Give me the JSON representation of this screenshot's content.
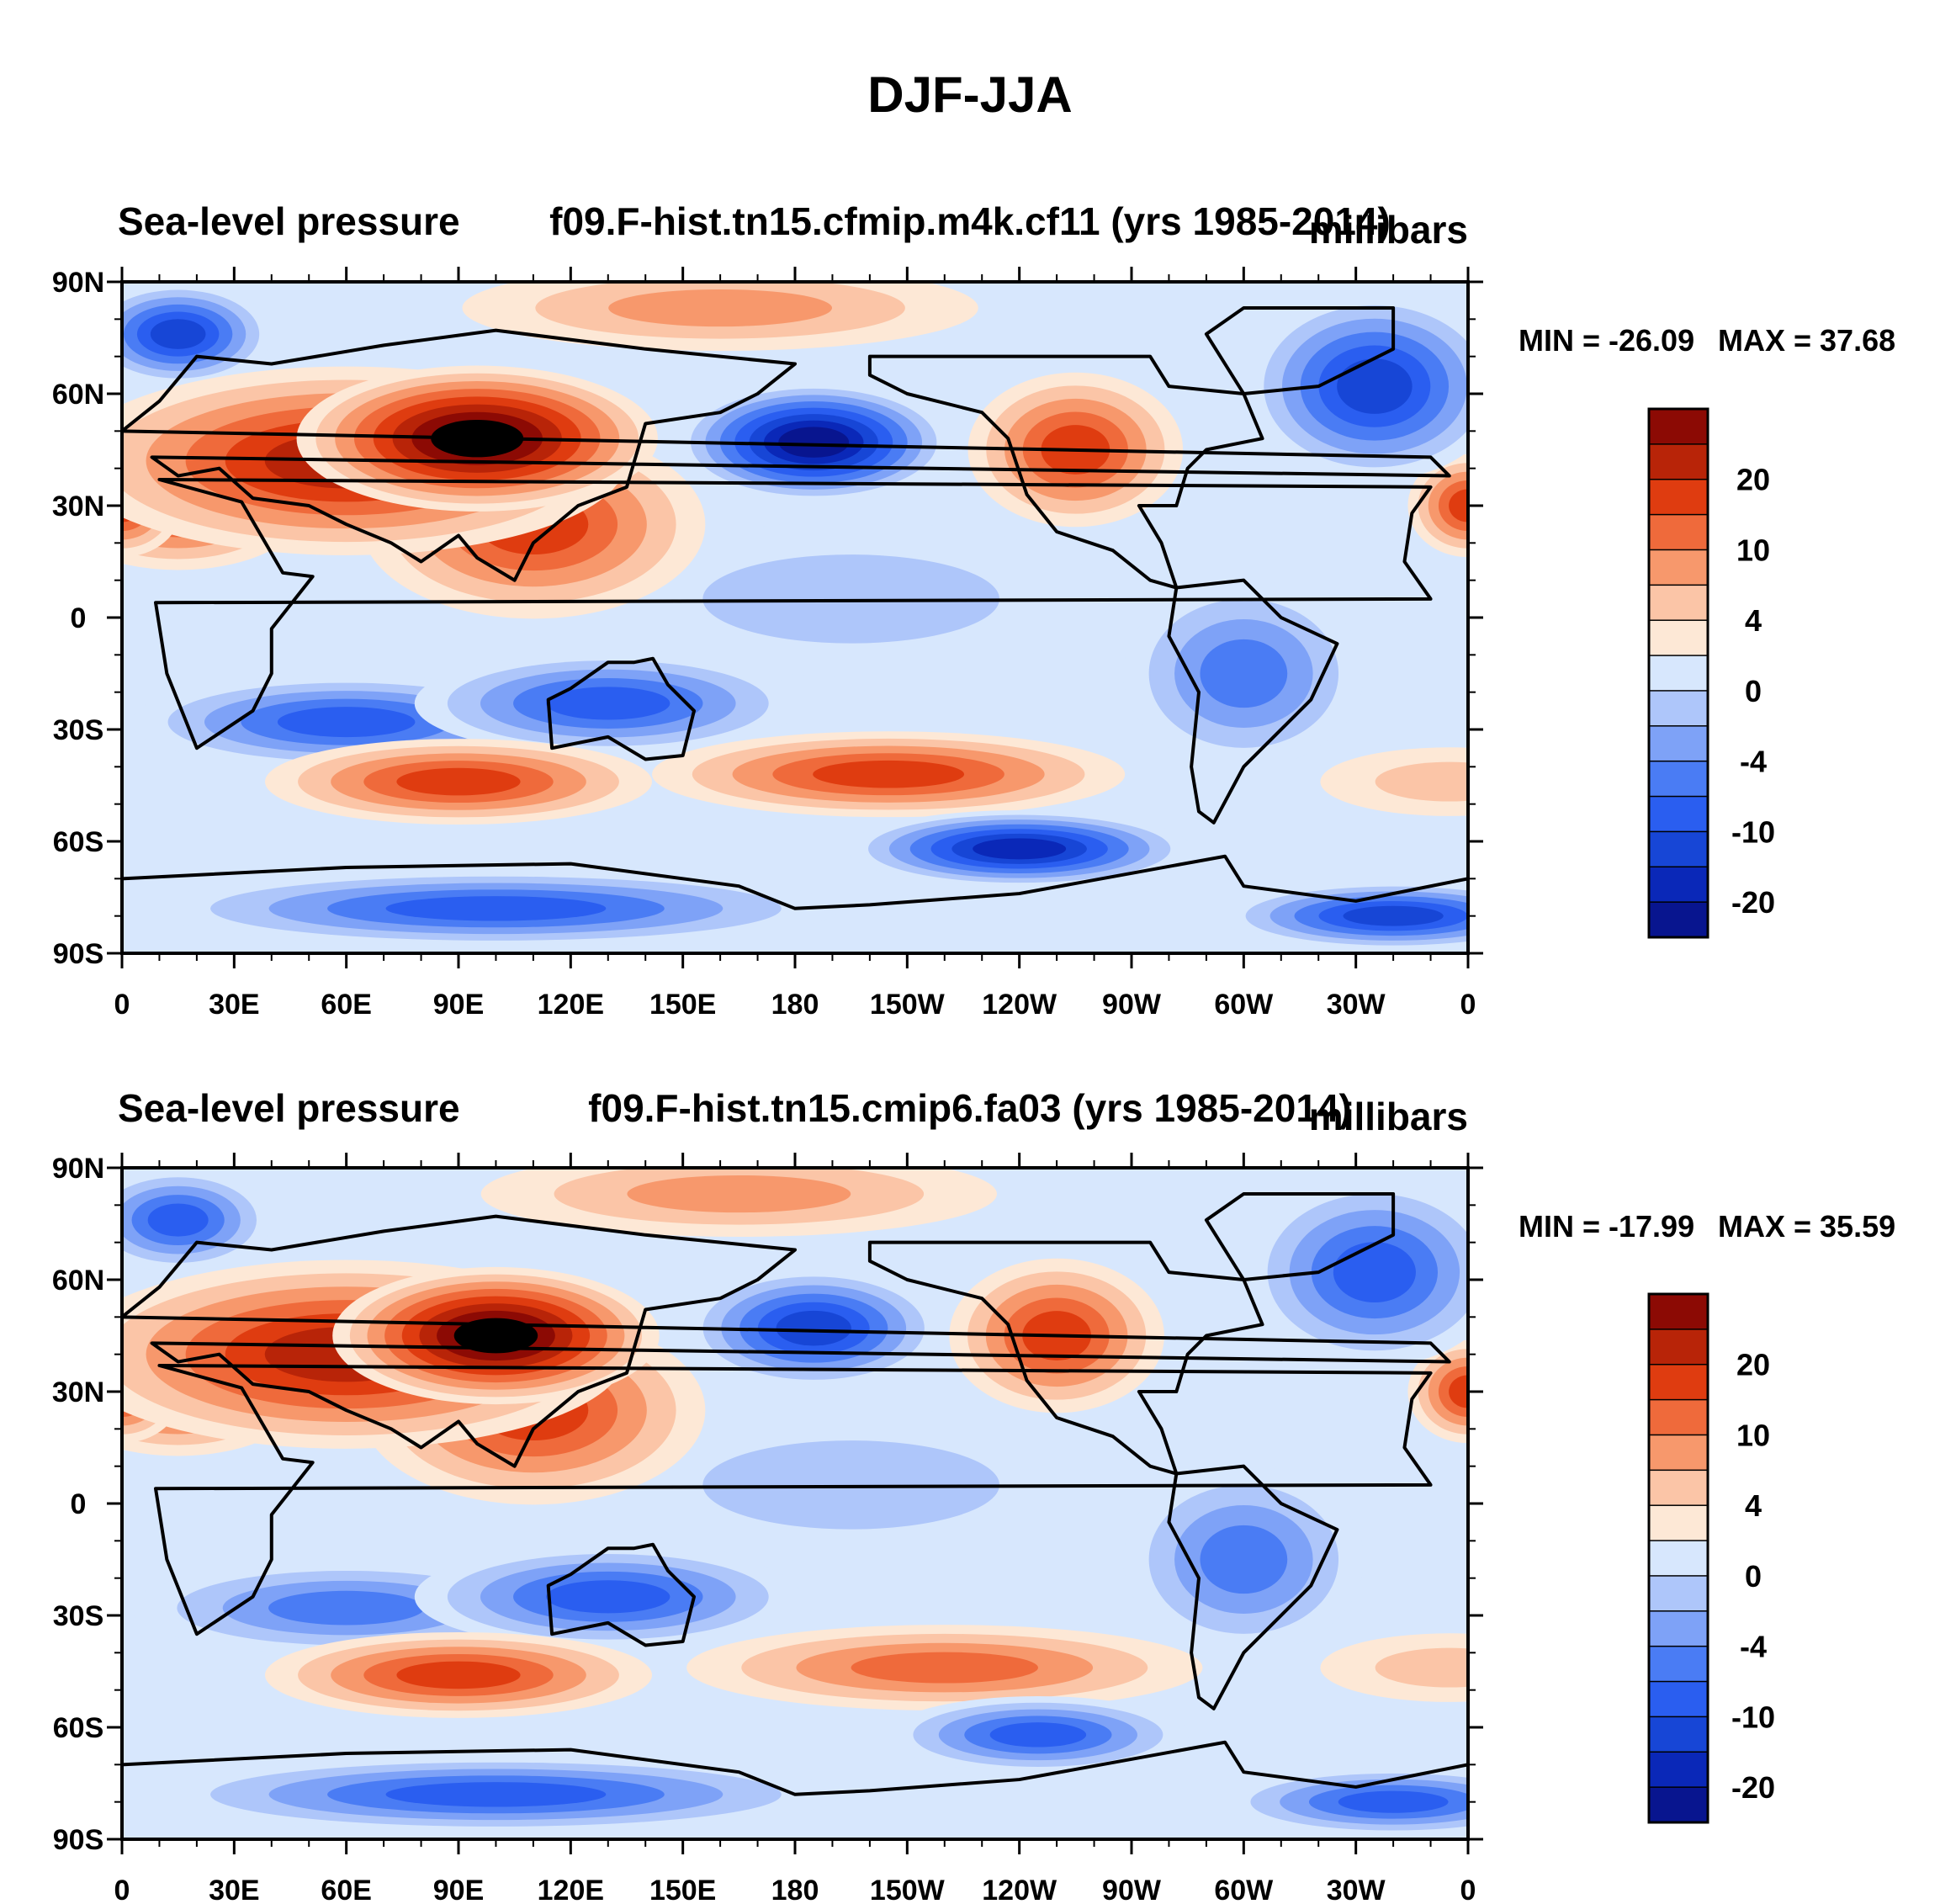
{
  "title": "DJF-JJA",
  "colors": {
    "levels_palette": [
      "#08158f",
      "#0a28b8",
      "#1746d6",
      "#2a5ef0",
      "#4a7cf4",
      "#7ea2f7",
      "#aec6fa",
      "#d7e7fd",
      "#fde8d6",
      "#fbc5a7",
      "#f7986c",
      "#ef6a3b",
      "#df3c10",
      "#b82408",
      "#8c0a04"
    ],
    "ocean_near_zero": "#d7e7fd",
    "coastline": "#000000"
  },
  "chart_data": [
    {
      "type": "heatmap",
      "variable_label": "Sea-level pressure",
      "case_label": "f09.F-hist.tn15.cfmip.m4k.cf11 (yrs 1985-2014)",
      "units": "millibars",
      "min_label": "MIN = -26.09",
      "max_label": "MAX =  37.68",
      "min": -26.09,
      "max": 37.68,
      "x_ticks": [
        "0",
        "30E",
        "60E",
        "90E",
        "120E",
        "150E",
        "180",
        "150W",
        "120W",
        "90W",
        "60W",
        "30W",
        "0"
      ],
      "y_ticks": [
        "90N",
        "60N",
        "30N",
        "0",
        "30S",
        "60S",
        "90S"
      ],
      "lon_range": [
        0,
        360
      ],
      "lat_range": [
        -90,
        90
      ],
      "colorbar_labels": [
        "20",
        "10",
        "4",
        "0",
        "-4",
        "-10",
        "-20"
      ],
      "features": [
        {
          "lon": 95,
          "lat": 48,
          "rx": 42,
          "ry": 17,
          "v": 32
        },
        {
          "lon": 60,
          "lat": 42,
          "rx": 65,
          "ry": 22,
          "v": 19
        },
        {
          "lon": 15,
          "lat": 30,
          "rx": 30,
          "ry": 15,
          "v": 14
        },
        {
          "lon": 110,
          "lat": 25,
          "rx": 40,
          "ry": 22,
          "v": 12
        },
        {
          "lon": 360,
          "lat": 30,
          "rx": 14,
          "ry": 12,
          "v": 14
        },
        {
          "lon": 0,
          "lat": 30,
          "rx": 14,
          "ry": 12,
          "v": 14
        },
        {
          "lon": 255,
          "lat": 45,
          "rx": 25,
          "ry": 18,
          "v": 14
        },
        {
          "lon": 245,
          "lat": 38,
          "rx": 9,
          "ry": 6,
          "v": 8
        },
        {
          "lon": 160,
          "lat": 83,
          "rx": 60,
          "ry": 10,
          "v": 5
        },
        {
          "lon": 185,
          "lat": 47,
          "rx": 32,
          "ry": 14,
          "v": -24
        },
        {
          "lon": 335,
          "lat": 62,
          "rx": 30,
          "ry": 22,
          "v": -16
        },
        {
          "lon": 15,
          "lat": 76,
          "rx": 22,
          "ry": 12,
          "v": -18
        },
        {
          "lon": 60,
          "lat": -28,
          "rx": 50,
          "ry": 11,
          "v": -10
        },
        {
          "lon": 130,
          "lat": -23,
          "rx": 45,
          "ry": 12,
          "v": -11
        },
        {
          "lon": 300,
          "lat": -15,
          "rx": 28,
          "ry": 22,
          "v": -8
        },
        {
          "lon": 195,
          "lat": 5,
          "rx": 60,
          "ry": 18,
          "v": -2
        },
        {
          "lon": 90,
          "lat": -44,
          "rx": 45,
          "ry": 10,
          "v": 14
        },
        {
          "lon": 205,
          "lat": -42,
          "rx": 55,
          "ry": 10,
          "v": 12
        },
        {
          "lon": 355,
          "lat": -44,
          "rx": 30,
          "ry": 8,
          "v": 4
        },
        {
          "lon": 240,
          "lat": -62,
          "rx": 40,
          "ry": 9,
          "v": -21
        },
        {
          "lon": 100,
          "lat": -78,
          "rx": 80,
          "ry": 9,
          "v": -12
        },
        {
          "lon": 340,
          "lat": -80,
          "rx": 40,
          "ry": 8,
          "v": -15
        }
      ]
    },
    {
      "type": "heatmap",
      "variable_label": "Sea-level pressure",
      "case_label": "f09.F-hist.tn15.cmip6.fa03 (yrs 1985-2014)",
      "units": "millibars",
      "min_label": "MIN = -17.99",
      "max_label": "MAX =  35.59",
      "min": -17.99,
      "max": 35.59,
      "x_ticks": [
        "0",
        "30E",
        "60E",
        "90E",
        "120E",
        "150E",
        "180",
        "150W",
        "120W",
        "90W",
        "60W",
        "30W",
        "0"
      ],
      "y_ticks": [
        "90N",
        "60N",
        "30N",
        "0",
        "30S",
        "60S",
        "90S"
      ],
      "lon_range": [
        0,
        360
      ],
      "lat_range": [
        -90,
        90
      ],
      "colorbar_labels": [
        "20",
        "10",
        "4",
        "0",
        "-4",
        "-10",
        "-20"
      ],
      "features": [
        {
          "lon": 100,
          "lat": 45,
          "rx": 38,
          "ry": 16,
          "v": 30
        },
        {
          "lon": 60,
          "lat": 40,
          "rx": 65,
          "ry": 22,
          "v": 18
        },
        {
          "lon": 15,
          "lat": 30,
          "rx": 30,
          "ry": 15,
          "v": 13
        },
        {
          "lon": 110,
          "lat": 25,
          "rx": 40,
          "ry": 22,
          "v": 11
        },
        {
          "lon": 360,
          "lat": 30,
          "rx": 14,
          "ry": 12,
          "v": 13
        },
        {
          "lon": 0,
          "lat": 30,
          "rx": 14,
          "ry": 12,
          "v": 13
        },
        {
          "lon": 250,
          "lat": 45,
          "rx": 25,
          "ry": 18,
          "v": 12
        },
        {
          "lon": 165,
          "lat": 83,
          "rx": 60,
          "ry": 10,
          "v": 6
        },
        {
          "lon": 185,
          "lat": 47,
          "rx": 30,
          "ry": 14,
          "v": -17
        },
        {
          "lon": 335,
          "lat": 62,
          "rx": 30,
          "ry": 22,
          "v": -13
        },
        {
          "lon": 15,
          "lat": 76,
          "rx": 22,
          "ry": 12,
          "v": -14
        },
        {
          "lon": 60,
          "lat": -28,
          "rx": 50,
          "ry": 11,
          "v": -9
        },
        {
          "lon": 130,
          "lat": -25,
          "rx": 45,
          "ry": 12,
          "v": -10
        },
        {
          "lon": 300,
          "lat": -15,
          "rx": 28,
          "ry": 22,
          "v": -7
        },
        {
          "lon": 195,
          "lat": 5,
          "rx": 60,
          "ry": 18,
          "v": -2
        },
        {
          "lon": 90,
          "lat": -46,
          "rx": 45,
          "ry": 10,
          "v": 13
        },
        {
          "lon": 220,
          "lat": -44,
          "rx": 60,
          "ry": 10,
          "v": 8
        },
        {
          "lon": 355,
          "lat": -44,
          "rx": 30,
          "ry": 8,
          "v": 3
        },
        {
          "lon": 245,
          "lat": -62,
          "rx": 35,
          "ry": 9,
          "v": -13
        },
        {
          "lon": 100,
          "lat": -78,
          "rx": 80,
          "ry": 9,
          "v": -10
        },
        {
          "lon": 340,
          "lat": -80,
          "rx": 40,
          "ry": 8,
          "v": -12
        }
      ]
    }
  ]
}
